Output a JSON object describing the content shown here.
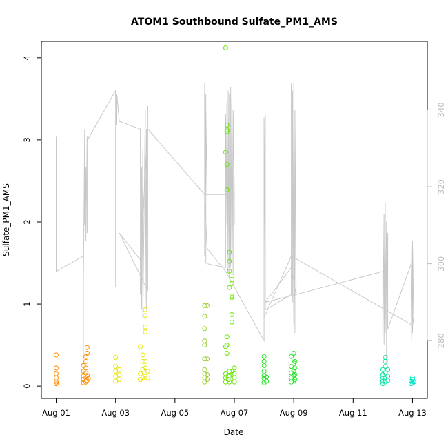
{
  "chart_data": {
    "type": "scatter",
    "title": "ATOM1 Southbound Sulfate_PM1_AMS",
    "xlabel": "Date",
    "ylabel": "Sulfate_PM1_AMS",
    "xlim": [
      "2016-07-31T12:00",
      "2016-08-13T12:00"
    ],
    "ylim": [
      -0.15,
      4.2
    ],
    "x_ticks": [
      "2016-08-01",
      "2016-08-03",
      "2016-08-05",
      "2016-08-07",
      "2016-08-09",
      "2016-08-11",
      "2016-08-13"
    ],
    "x_tick_labels": [
      "Aug 01",
      "Aug 03",
      "Aug 05",
      "Aug 07",
      "Aug 09",
      "Aug 11",
      "Aug 13"
    ],
    "y_ticks": [
      0,
      1,
      2,
      3,
      4
    ],
    "y_tick_labels": [
      "0",
      "1",
      "2",
      "3",
      "4"
    ],
    "right_axis": {
      "ylim": [
        265.0,
        357.8
      ],
      "ticks": [
        280,
        300,
        320,
        340
      ],
      "tick_labels": [
        "280",
        "300",
        "320",
        "340"
      ],
      "color": "#bdbdbd"
    },
    "grid": false,
    "marker": "open-circle",
    "series": [
      {
        "color": "#FF8C00",
        "points": [
          [
            "2016-08-01T00:00",
            0.05
          ],
          [
            "2016-08-01T00:00",
            0.1
          ],
          [
            "2016-08-01T00:00",
            0.15
          ],
          [
            "2016-08-01T00:00",
            0.22
          ],
          [
            "2016-08-01T00:00",
            0.38
          ],
          [
            "2016-08-01T00:00",
            0.03
          ],
          [
            "2016-08-01T22:00",
            0.04
          ],
          [
            "2016-08-01T22:00",
            0.08
          ],
          [
            "2016-08-01T22:00",
            0.12
          ],
          [
            "2016-08-01T22:00",
            0.18
          ],
          [
            "2016-08-01T22:00",
            0.25
          ],
          [
            "2016-08-02T00:00",
            0.05
          ],
          [
            "2016-08-02T00:00",
            0.1
          ],
          [
            "2016-08-02T00:00",
            0.16
          ],
          [
            "2016-08-02T00:00",
            0.22
          ],
          [
            "2016-08-02T00:00",
            0.3
          ],
          [
            "2016-08-02T00:00",
            0.36
          ],
          [
            "2016-08-02T01:00",
            0.07
          ],
          [
            "2016-08-02T01:00",
            0.13
          ],
          [
            "2016-08-02T01:00",
            0.4
          ],
          [
            "2016-08-02T01:00",
            0.47
          ],
          [
            "2016-08-02T02:00",
            0.09
          ]
        ]
      },
      {
        "color": "#E6E600",
        "points": [
          [
            "2016-08-03T00:00",
            0.06
          ],
          [
            "2016-08-03T00:00",
            0.12
          ],
          [
            "2016-08-03T00:00",
            0.18
          ],
          [
            "2016-08-03T00:00",
            0.24
          ],
          [
            "2016-08-03T00:00",
            0.35
          ],
          [
            "2016-08-03T03:00",
            0.08
          ],
          [
            "2016-08-03T03:00",
            0.14
          ],
          [
            "2016-08-03T03:00",
            0.2
          ],
          [
            "2016-08-03T20:00",
            0.08
          ],
          [
            "2016-08-03T20:00",
            0.15
          ],
          [
            "2016-08-03T20:00",
            0.48
          ],
          [
            "2016-08-03T22:00",
            0.1
          ],
          [
            "2016-08-03T22:00",
            0.2
          ],
          [
            "2016-08-03T22:00",
            0.3
          ],
          [
            "2016-08-03T22:00",
            0.38
          ],
          [
            "2016-08-04T00:00",
            0.12
          ],
          [
            "2016-08-04T00:00",
            0.22
          ],
          [
            "2016-08-04T00:00",
            0.3
          ],
          [
            "2016-08-04T00:00",
            0.66
          ],
          [
            "2016-08-04T00:00",
            0.72
          ],
          [
            "2016-08-04T00:00",
            0.86
          ],
          [
            "2016-08-04T00:00",
            0.93
          ],
          [
            "2016-08-04T02:00",
            0.1
          ],
          [
            "2016-08-04T02:00",
            0.18
          ]
        ]
      },
      {
        "color": "#9ACD32",
        "points": [
          [
            "2016-08-06T00:00",
            0.05
          ],
          [
            "2016-08-06T00:00",
            0.1
          ],
          [
            "2016-08-06T00:00",
            0.15
          ],
          [
            "2016-08-06T00:00",
            0.2
          ],
          [
            "2016-08-06T00:00",
            0.33
          ],
          [
            "2016-08-06T00:00",
            0.5
          ],
          [
            "2016-08-06T00:00",
            0.55
          ],
          [
            "2016-08-06T00:00",
            0.7
          ],
          [
            "2016-08-06T00:00",
            0.85
          ],
          [
            "2016-08-06T00:00",
            0.98
          ],
          [
            "2016-08-06T02:00",
            0.08
          ],
          [
            "2016-08-06T02:00",
            0.14
          ],
          [
            "2016-08-06T02:00",
            0.98
          ],
          [
            "2016-08-06T02:00",
            0.33
          ]
        ]
      },
      {
        "color": "#66E600",
        "points": [
          [
            "2016-08-06T17:00",
            0.05
          ],
          [
            "2016-08-06T17:00",
            0.1
          ],
          [
            "2016-08-06T17:00",
            0.15
          ],
          [
            "2016-08-06T17:00",
            0.48
          ],
          [
            "2016-08-06T17:00",
            4.12
          ],
          [
            "2016-08-06T17:00",
            2.85
          ],
          [
            "2016-08-06T18:00",
            3.18
          ],
          [
            "2016-08-06T18:00",
            3.12
          ],
          [
            "2016-08-06T18:00",
            3.1
          ],
          [
            "2016-08-06T18:00",
            2.7
          ],
          [
            "2016-08-06T18:00",
            2.39
          ],
          [
            "2016-08-06T18:00",
            0.5
          ],
          [
            "2016-08-06T18:00",
            0.6
          ],
          [
            "2016-08-06T18:00",
            0.4
          ],
          [
            "2016-08-06T19:00",
            0.08
          ],
          [
            "2016-08-06T19:00",
            0.12
          ],
          [
            "2016-08-06T20:00",
            1.63
          ],
          [
            "2016-08-06T20:00",
            1.52
          ],
          [
            "2016-08-06T20:00",
            1.4
          ],
          [
            "2016-08-06T20:00",
            1.2
          ],
          [
            "2016-08-06T22:00",
            1.3
          ],
          [
            "2016-08-06T22:00",
            1.25
          ],
          [
            "2016-08-06T22:00",
            1.1
          ],
          [
            "2016-08-06T22:00",
            1.08
          ],
          [
            "2016-08-06T22:00",
            0.87
          ],
          [
            "2016-08-06T22:00",
            0.78
          ],
          [
            "2016-08-06T22:00",
            0.18
          ],
          [
            "2016-08-07T00:00",
            0.05
          ],
          [
            "2016-08-07T00:00",
            0.1
          ],
          [
            "2016-08-07T00:00",
            0.15
          ],
          [
            "2016-08-07T00:00",
            0.22
          ],
          [
            "2016-08-06T20:00",
            0.05
          ],
          [
            "2016-08-06T20:00",
            0.12
          ],
          [
            "2016-08-06T20:00",
            0.18
          ]
        ]
      },
      {
        "color": "#22E622",
        "points": [
          [
            "2016-08-08T00:00",
            0.04
          ],
          [
            "2016-08-08T00:00",
            0.09
          ],
          [
            "2016-08-08T00:00",
            0.13
          ],
          [
            "2016-08-08T00:00",
            0.18
          ],
          [
            "2016-08-08T00:00",
            0.25
          ],
          [
            "2016-08-08T00:00",
            0.3
          ],
          [
            "2016-08-08T00:00",
            0.36
          ],
          [
            "2016-08-08T02:00",
            0.06
          ],
          [
            "2016-08-08T02:00",
            0.11
          ],
          [
            "2016-08-08T22:00",
            0.05
          ],
          [
            "2016-08-08T22:00",
            0.1
          ],
          [
            "2016-08-08T22:00",
            0.16
          ],
          [
            "2016-08-08T22:00",
            0.24
          ],
          [
            "2016-08-08T22:00",
            0.36
          ],
          [
            "2016-08-09T00:00",
            0.06
          ],
          [
            "2016-08-09T00:00",
            0.12
          ],
          [
            "2016-08-09T00:00",
            0.18
          ],
          [
            "2016-08-09T00:00",
            0.28
          ],
          [
            "2016-08-09T00:00",
            0.4
          ],
          [
            "2016-08-09T01:00",
            0.08
          ],
          [
            "2016-08-09T01:00",
            0.14
          ],
          [
            "2016-08-09T01:00",
            0.22
          ],
          [
            "2016-08-09T01:00",
            0.3
          ]
        ]
      },
      {
        "color": "#00E6A0",
        "points": [
          [
            "2016-08-12T00:00",
            0.03
          ],
          [
            "2016-08-12T00:00",
            0.06
          ],
          [
            "2016-08-12T00:00",
            0.1
          ],
          [
            "2016-08-12T00:00",
            0.14
          ],
          [
            "2016-08-12T00:00",
            0.2
          ],
          [
            "2016-08-12T02:00",
            0.05
          ],
          [
            "2016-08-12T02:00",
            0.1
          ],
          [
            "2016-08-12T02:00",
            0.16
          ],
          [
            "2016-08-12T02:00",
            0.24
          ],
          [
            "2016-08-12T02:00",
            0.3
          ],
          [
            "2016-08-12T02:00",
            0.35
          ],
          [
            "2016-08-12T04:00",
            0.07
          ],
          [
            "2016-08-12T04:00",
            0.12
          ],
          [
            "2016-08-12T04:00",
            0.2
          ]
        ]
      },
      {
        "color": "#00E6C8",
        "points": [
          [
            "2016-08-12T23:00",
            0.03
          ],
          [
            "2016-08-12T23:00",
            0.06
          ],
          [
            "2016-08-13T00:00",
            0.04
          ],
          [
            "2016-08-13T00:00",
            0.08
          ],
          [
            "2016-08-13T00:00",
            0.1
          ],
          [
            "2016-08-13T01:00",
            0.05
          ]
        ]
      }
    ],
    "secondary_line": {
      "color": "#c8c8c8",
      "axis": "right",
      "points": [
        [
          "2016-08-01T00:00",
          333
        ],
        [
          "2016-08-01T00:00",
          318
        ],
        [
          "2016-08-01T00:00",
          333
        ],
        [
          "2016-08-01T00:00",
          298
        ],
        [
          "2016-08-01T22:00",
          302
        ],
        [
          "2016-08-01T22:00",
          275
        ],
        [
          "2016-08-01T22:00",
          295
        ],
        [
          "2016-08-01T23:00",
          335
        ],
        [
          "2016-08-01T23:00",
          310
        ],
        [
          "2016-08-02T00:00",
          325
        ],
        [
          "2016-08-02T00:00",
          306
        ],
        [
          "2016-08-02T01:00",
          333
        ],
        [
          "2016-08-02T01:00",
          308
        ],
        [
          "2016-08-02T01:00",
          332
        ],
        [
          "2016-08-03T00:00",
          345
        ],
        [
          "2016-08-03T00:00",
          294
        ],
        [
          "2016-08-03T00:00",
          344
        ],
        [
          "2016-08-03T01:00",
          336
        ],
        [
          "2016-08-03T01:00",
          344
        ],
        [
          "2016-08-03T03:00",
          337
        ],
        [
          "2016-08-03T20:00",
          335
        ],
        [
          "2016-08-03T20:00",
          292
        ],
        [
          "2016-08-03T21:00",
          325
        ],
        [
          "2016-08-03T21:00",
          288
        ],
        [
          "2016-08-03T22:00",
          330
        ],
        [
          "2016-08-03T22:00",
          286
        ],
        [
          "2016-08-04T00:00",
          340
        ],
        [
          "2016-08-04T00:00",
          290
        ],
        [
          "2016-08-04T01:00",
          335
        ],
        [
          "2016-08-04T01:00",
          288
        ],
        [
          "2016-08-04T02:00",
          341
        ],
        [
          "2016-08-04T02:00",
          293
        ],
        [
          "2016-08-03T03:00",
          308
        ],
        [
          "2016-08-03T20:00",
          301
        ],
        [
          "2016-08-04T02:00",
          335
        ],
        [
          "2016-08-06T00:00",
          318
        ],
        [
          "2016-08-06T00:00",
          347
        ],
        [
          "2016-08-06T00:00",
          302
        ],
        [
          "2016-08-06T01:00",
          344
        ],
        [
          "2016-08-06T01:00",
          300
        ],
        [
          "2016-08-06T01:00",
          340
        ],
        [
          "2016-08-06T02:00",
          318
        ],
        [
          "2016-08-06T02:00",
          334
        ],
        [
          "2016-08-06T02:00",
          300
        ],
        [
          "2016-08-06T17:00",
          299
        ],
        [
          "2016-08-06T17:00",
          339
        ],
        [
          "2016-08-06T18:00",
          310
        ],
        [
          "2016-08-06T18:00",
          342
        ],
        [
          "2016-08-06T19:00",
          298
        ],
        [
          "2016-08-06T19:00",
          345
        ],
        [
          "2016-08-06T20:00",
          296
        ],
        [
          "2016-08-06T20:00",
          344
        ],
        [
          "2016-08-06T21:00",
          299
        ],
        [
          "2016-08-06T21:00",
          346
        ],
        [
          "2016-08-06T22:00",
          300
        ],
        [
          "2016-08-06T22:00",
          343
        ],
        [
          "2016-08-06T23:00",
          297
        ],
        [
          "2016-08-06T23:00",
          340
        ],
        [
          "2016-08-07T00:00",
          318
        ],
        [
          "2016-08-07T00:00",
          310
        ],
        [
          "2016-08-07T00:00",
          318
        ],
        [
          "2016-08-06T00:00",
          318
        ],
        [
          "2016-08-06T02:00",
          304
        ],
        [
          "2016-08-06T17:00",
          298
        ],
        [
          "2016-08-08T00:00",
          280
        ],
        [
          "2016-08-08T00:00",
          338
        ],
        [
          "2016-08-08T01:00",
          292
        ],
        [
          "2016-08-08T01:00",
          339
        ],
        [
          "2016-08-08T01:00",
          288
        ],
        [
          "2016-08-08T22:00",
          292
        ],
        [
          "2016-08-08T22:00",
          347
        ],
        [
          "2016-08-08T23:00",
          290
        ],
        [
          "2016-08-08T23:00",
          345
        ],
        [
          "2016-08-09T00:00",
          284
        ],
        [
          "2016-08-09T00:00",
          347
        ],
        [
          "2016-08-09T01:00",
          282
        ],
        [
          "2016-08-09T01:00",
          340
        ],
        [
          "2016-08-09T02:00",
          292
        ],
        [
          "2016-08-08T01:00",
          290
        ],
        [
          "2016-08-08T22:00",
          299
        ],
        [
          "2016-08-09T02:00",
          292
        ],
        [
          "2016-08-12T00:00",
          298
        ],
        [
          "2016-08-12T00:00",
          281
        ],
        [
          "2016-08-12T01:00",
          313
        ],
        [
          "2016-08-12T01:00",
          279
        ],
        [
          "2016-08-12T02:00",
          316
        ],
        [
          "2016-08-12T02:00",
          282
        ],
        [
          "2016-08-12T03:00",
          311
        ],
        [
          "2016-08-12T03:00",
          274
        ],
        [
          "2016-08-12T04:00",
          308
        ],
        [
          "2016-08-12T04:00",
          283
        ],
        [
          "2016-08-12T23:00",
          300
        ],
        [
          "2016-08-12T23:00",
          280
        ],
        [
          "2016-08-13T00:00",
          306
        ],
        [
          "2016-08-13T00:00",
          282
        ],
        [
          "2016-08-13T01:00",
          304
        ],
        [
          "2016-08-13T01:00",
          286
        ],
        [
          "2016-08-13T00:00",
          284
        ],
        [
          "2016-08-08T22:00",
          302
        ],
        [
          "2016-08-08T00:00",
          286
        ]
      ]
    }
  }
}
